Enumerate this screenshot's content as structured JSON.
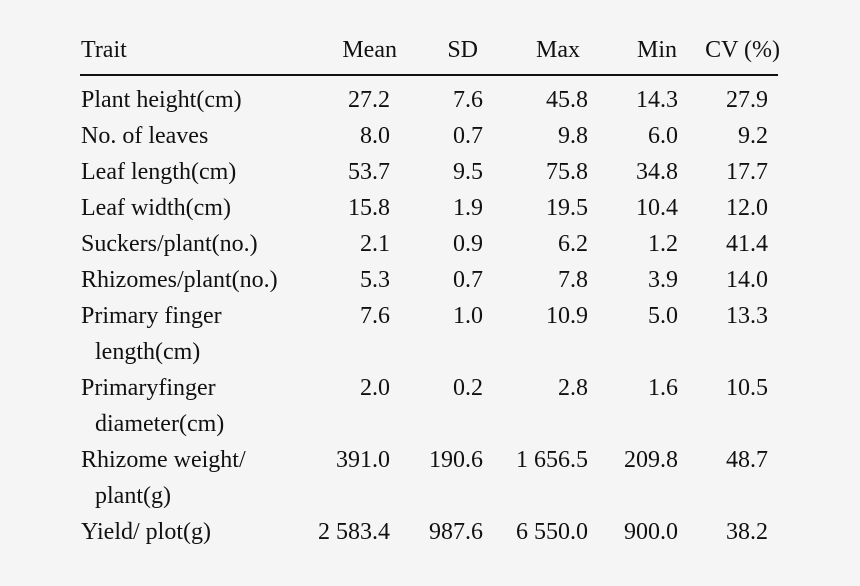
{
  "table": {
    "headers": {
      "trait": "Trait",
      "mean": "Mean",
      "sd": "SD",
      "max": "Max",
      "min": "Min",
      "cv": "CV (%)"
    },
    "rows": [
      {
        "trait": "Plant height(cm)",
        "trait_line2": "",
        "mean": "27.2",
        "sd": "7.6",
        "max": "45.8",
        "min": "14.3",
        "cv": "27.9"
      },
      {
        "trait": "No. of leaves",
        "trait_line2": "",
        "mean": "8.0",
        "sd": "0.7",
        "max": "9.8",
        "min": "6.0",
        "cv": "9.2"
      },
      {
        "trait": "Leaf length(cm)",
        "trait_line2": "",
        "mean": "53.7",
        "sd": "9.5",
        "max": "75.8",
        "min": "34.8",
        "cv": "17.7"
      },
      {
        "trait": "Leaf width(cm)",
        "trait_line2": "",
        "mean": "15.8",
        "sd": "1.9",
        "max": "19.5",
        "min": "10.4",
        "cv": "12.0"
      },
      {
        "trait": "Suckers/plant(no.)",
        "trait_line2": "",
        "mean": "2.1",
        "sd": "0.9",
        "max": "6.2",
        "min": "1.2",
        "cv": "41.4"
      },
      {
        "trait": "Rhizomes/plant(no.)",
        "trait_line2": "",
        "mean": "5.3",
        "sd": "0.7",
        "max": "7.8",
        "min": "3.9",
        "cv": "14.0"
      },
      {
        "trait": "Primary finger",
        "trait_line2": "length(cm)",
        "mean": "7.6",
        "sd": "1.0",
        "max": "10.9",
        "min": "5.0",
        "cv": "13.3"
      },
      {
        "trait": "Primaryfinger",
        "trait_line2": "diameter(cm)",
        "mean": "2.0",
        "sd": "0.2",
        "max": "2.8",
        "min": "1.6",
        "cv": "10.5"
      },
      {
        "trait": "Rhizome weight/",
        "trait_line2": "plant(g)",
        "mean": "391.0",
        "sd": "190.6",
        "max": "1 656.5",
        "min": "209.8",
        "cv": "48.7"
      },
      {
        "trait": "Yield/ plot(g)",
        "trait_line2": "",
        "mean": "2 583.4",
        "sd": "987.6",
        "max": "6 550.0",
        "min": "900.0",
        "cv": "38.2"
      }
    ]
  }
}
